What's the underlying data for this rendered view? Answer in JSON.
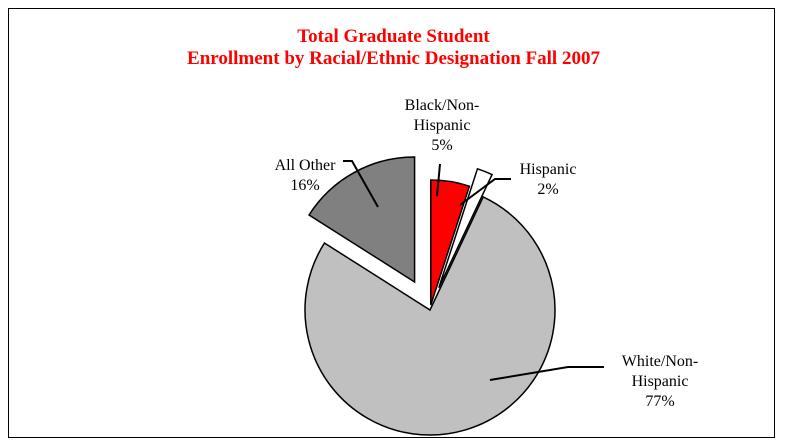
{
  "chart_data": {
    "type": "pie",
    "title_lines": [
      "Total Graduate Student",
      "Enrollment by Racial/Ethnic Designation Fall 2007"
    ],
    "title_color": "#ff0000",
    "slices": [
      {
        "key": "black",
        "label_lines": [
          "Black/Non-",
          "Hispanic",
          "5%"
        ],
        "value": 5,
        "color": "#ff0000"
      },
      {
        "key": "hispanic",
        "label_lines": [
          "Hispanic",
          "2%"
        ],
        "value": 2,
        "color": "#ffffff"
      },
      {
        "key": "white",
        "label_lines": [
          "White/Non-",
          "Hispanic",
          "77%"
        ],
        "value": 77,
        "color": "#c0c0c0"
      },
      {
        "key": "other",
        "label_lines": [
          "All Other",
          "16%"
        ],
        "value": 16,
        "color": "#808080"
      }
    ],
    "exploded": true,
    "legend": "none"
  }
}
